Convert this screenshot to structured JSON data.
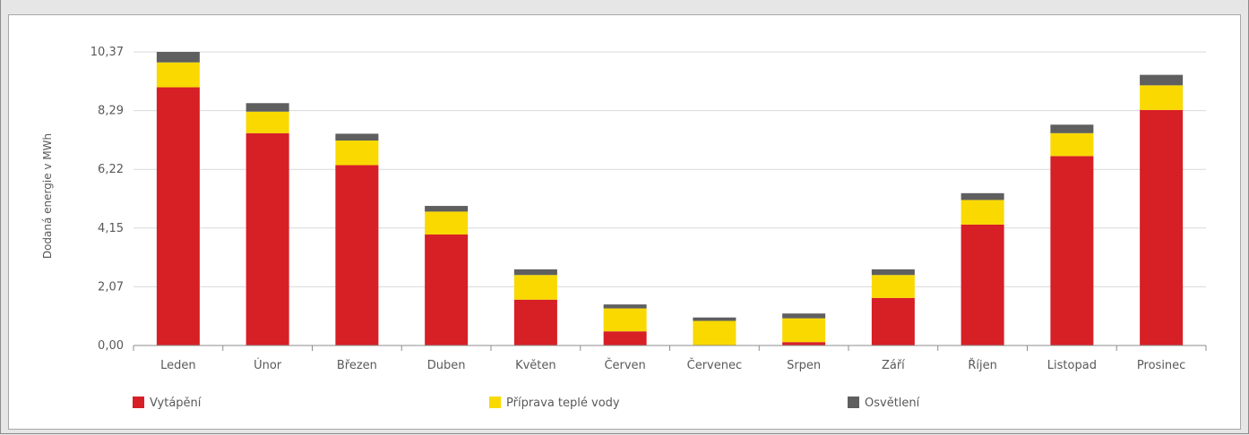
{
  "chart_data": {
    "type": "bar",
    "stacked": true,
    "ylabel": "Dodaná energie v MWh",
    "yticks": [
      "0,00",
      "2,07",
      "4,15",
      "6,22",
      "8,29",
      "10,37"
    ],
    "ylim": [
      0,
      10.37
    ],
    "grid": true,
    "legend_position": "bottom",
    "categories": [
      "Leden",
      "Únor",
      "Březen",
      "Duben",
      "Květen",
      "Červen",
      "Červenec",
      "Srpen",
      "Září",
      "Říjen",
      "Listopad",
      "Prosinec"
    ],
    "series": [
      {
        "name": "Vytápění",
        "color": "#d71f26",
        "values": [
          9.12,
          7.5,
          6.37,
          3.92,
          1.62,
          0.5,
          0.0,
          0.12,
          1.68,
          4.27,
          6.69,
          8.32
        ]
      },
      {
        "name": "Příprava teplé vody",
        "color": "#f9d900",
        "values": [
          0.88,
          0.76,
          0.87,
          0.81,
          0.87,
          0.81,
          0.87,
          0.84,
          0.81,
          0.87,
          0.81,
          0.87
        ]
      },
      {
        "name": "Osvětlení",
        "color": "#5f5f5f",
        "values": [
          0.37,
          0.3,
          0.24,
          0.2,
          0.2,
          0.14,
          0.12,
          0.17,
          0.2,
          0.24,
          0.3,
          0.37
        ]
      }
    ]
  }
}
